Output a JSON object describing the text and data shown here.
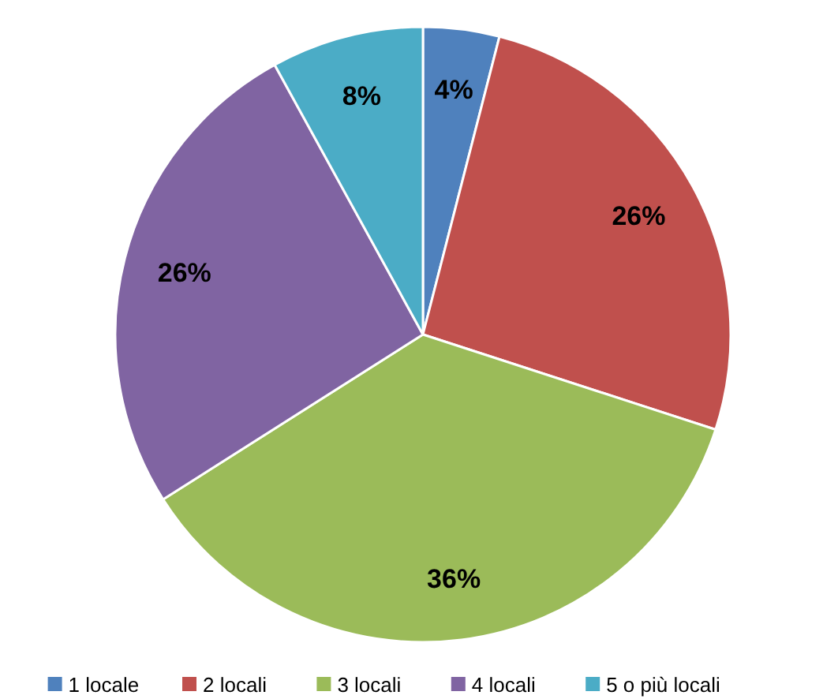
{
  "chart_data": {
    "type": "pie",
    "categories": [
      "1 locale",
      "2 locali",
      "3 locali",
      "4 locali",
      "5 o più locali"
    ],
    "values": [
      4,
      26,
      36,
      26,
      8
    ],
    "value_labels": [
      "4%",
      "26%",
      "36%",
      "26%",
      "8%"
    ],
    "colors": [
      "#4f81bd",
      "#c0504d",
      "#9bbb59",
      "#8064a2",
      "#4bacc6"
    ],
    "legend": "bottom"
  }
}
